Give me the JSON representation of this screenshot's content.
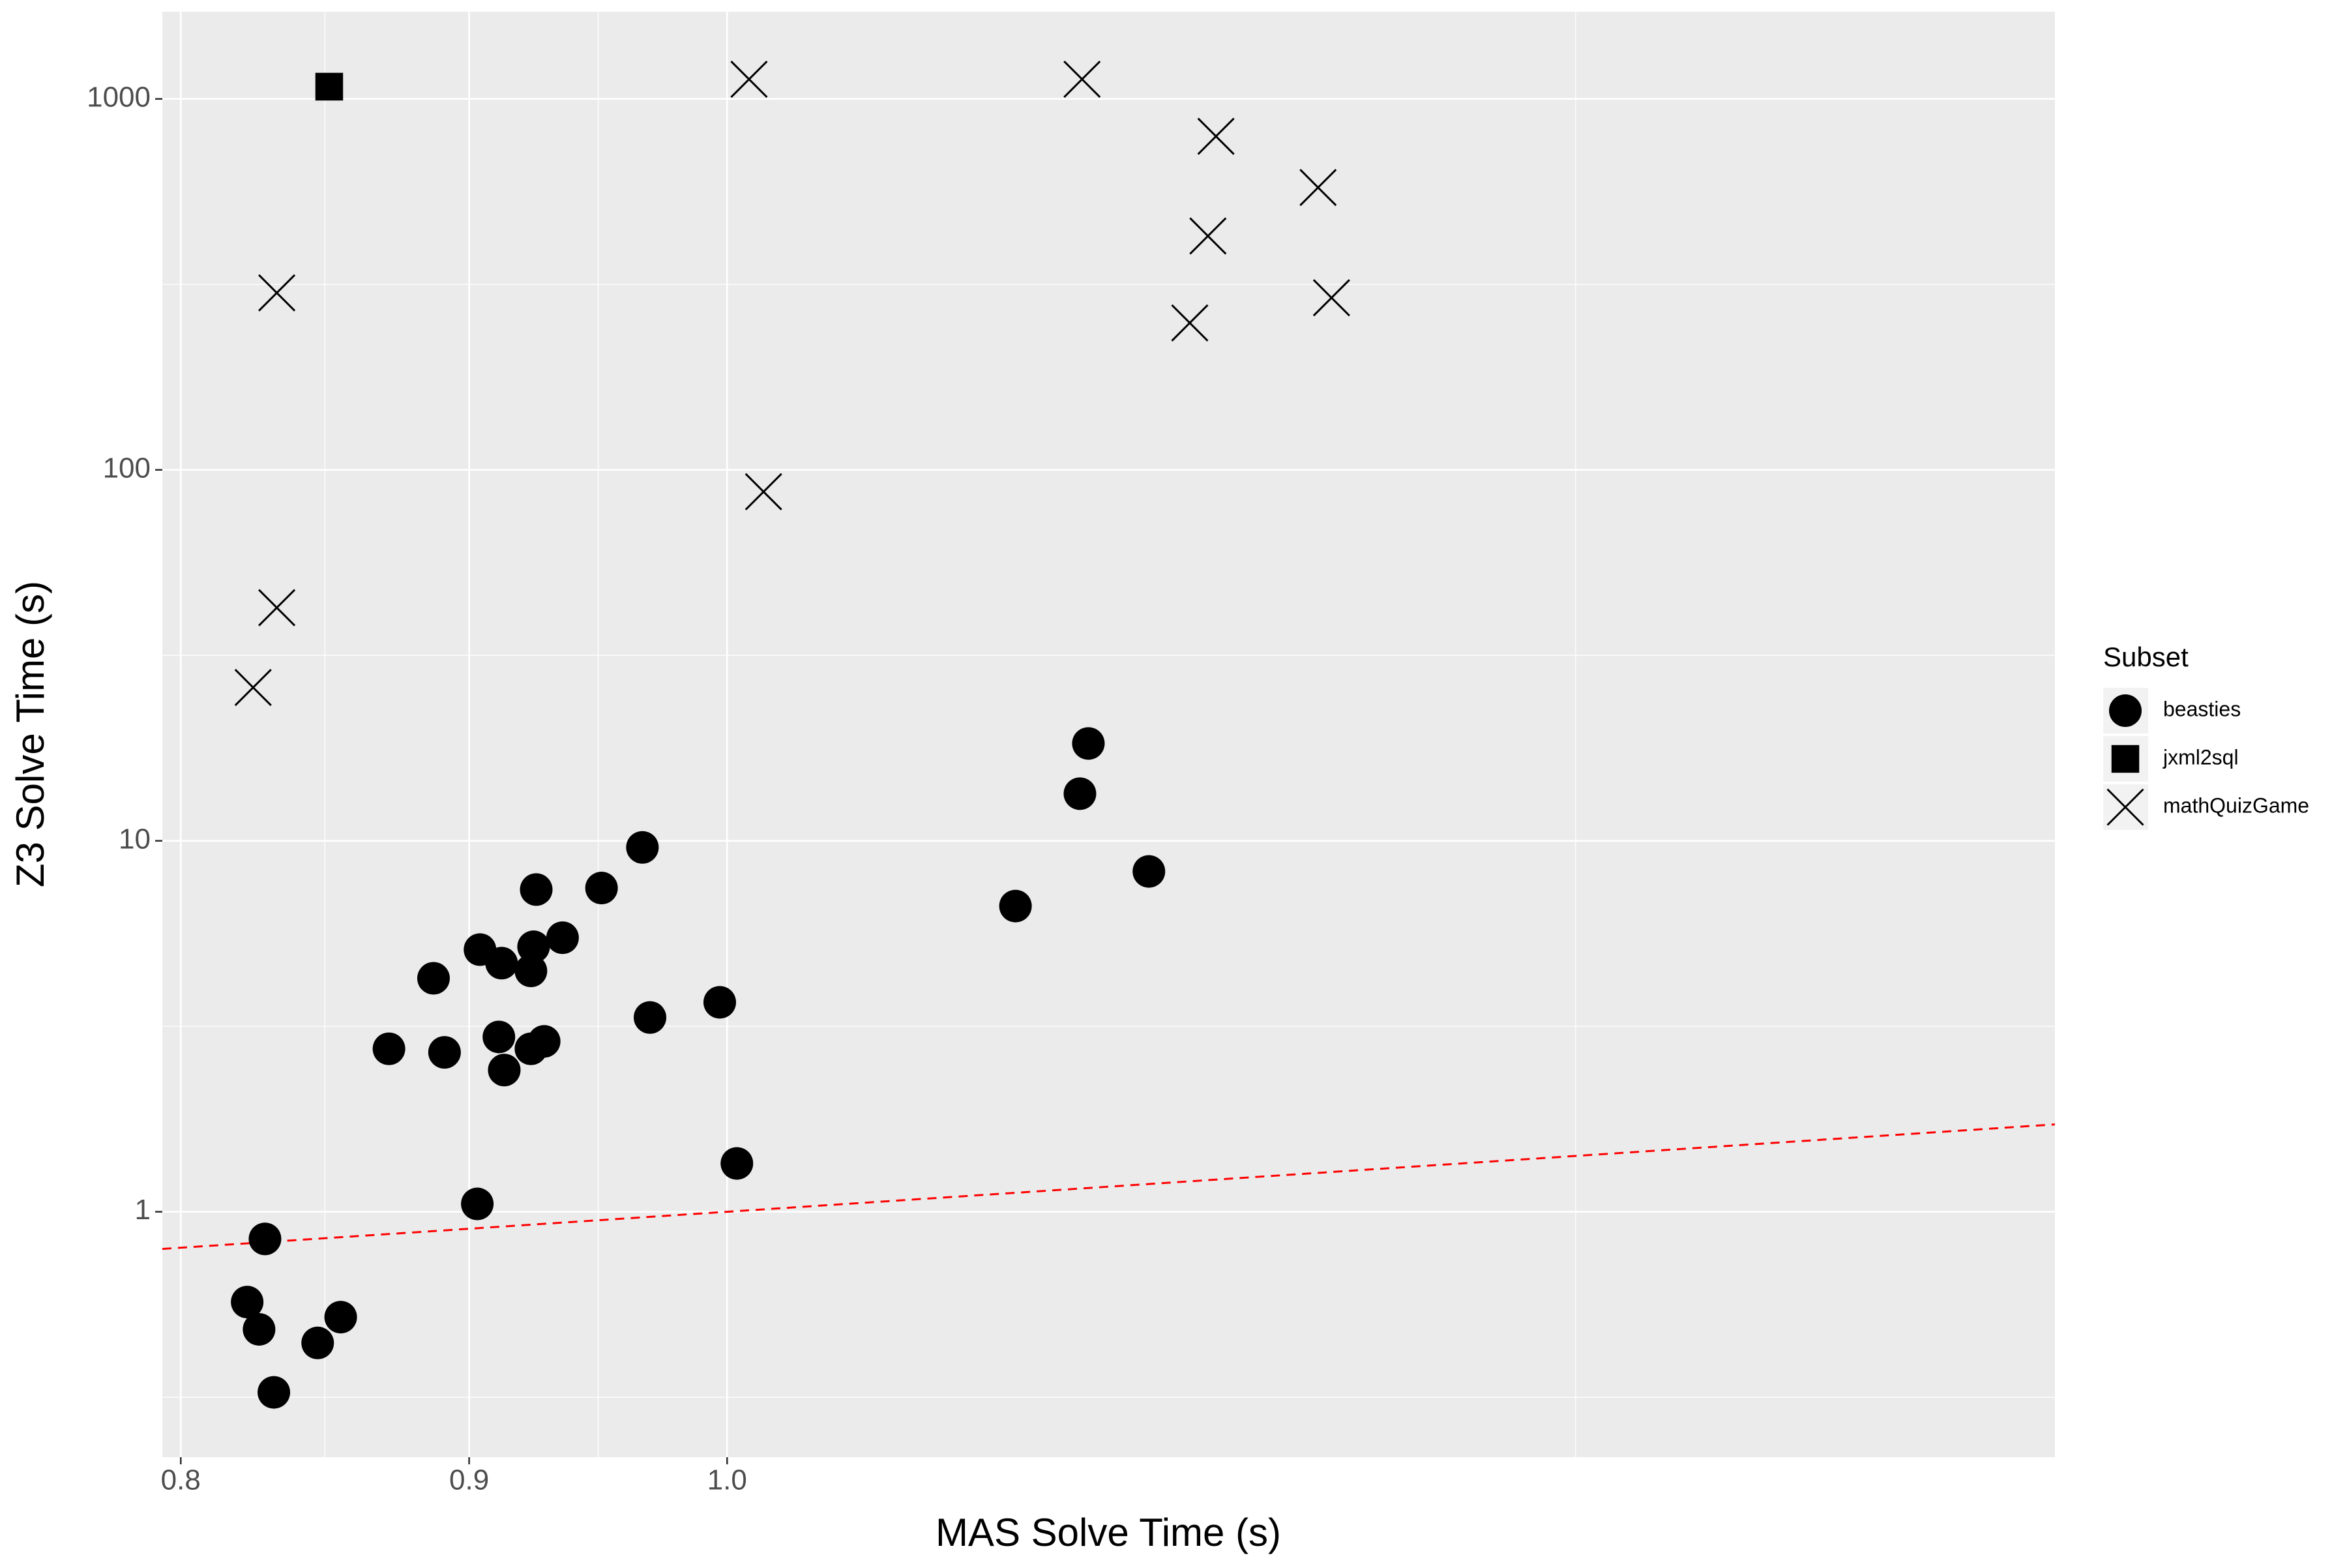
{
  "chart_data": {
    "type": "scatter",
    "x_label": "MAS Solve Time (s)",
    "y_label": "Z3 Solve Time (s)",
    "x_log": true,
    "y_log": true,
    "xlim": [
      0.794,
      1.72
    ],
    "ylim": [
      0.218,
      1718
    ],
    "xticks": [
      {
        "value": 0.8,
        "label": "0.8"
      },
      {
        "value": 0.9,
        "label": "0.9"
      },
      {
        "value": 1.0,
        "label": "1.0"
      }
    ],
    "yticks": [
      1,
      10,
      100,
      1000
    ],
    "x_minor_grid": [
      0.8485,
      0.9487,
      1.4142
    ],
    "y_minor_grid": [
      0.3162,
      3.162,
      31.62,
      316.2
    ],
    "grid": true,
    "legend_title": "Subset",
    "legend_position": "right",
    "reference_line": {
      "slope": 1,
      "intercept": 0,
      "color": "#ff0000",
      "dashed": true
    },
    "series": [
      {
        "name": "beasties",
        "shape": "circle",
        "color": "#000000",
        "x": [
          0.822,
          0.826,
          0.828,
          0.831,
          0.846,
          0.854,
          0.871,
          0.887,
          0.891,
          0.903,
          0.904,
          0.911,
          0.912,
          0.913,
          0.923,
          0.923,
          0.924,
          0.925,
          0.928,
          0.935,
          0.95,
          0.966,
          0.969,
          0.997,
          1.004,
          1.125,
          1.155,
          1.159,
          1.188
        ],
        "y": [
          0.571,
          0.482,
          0.845,
          0.326,
          0.443,
          0.52,
          2.75,
          4.26,
          2.69,
          1.05,
          5.09,
          2.96,
          4.68,
          2.41,
          2.75,
          4.46,
          5.18,
          7.39,
          2.88,
          5.48,
          7.46,
          9.6,
          3.34,
          3.67,
          1.35,
          6.67,
          13.4,
          18.3,
          8.27
        ]
      },
      {
        "name": "jxml2sql",
        "shape": "square",
        "color": "#000000",
        "x": [
          0.85
        ],
        "y": [
          1079
        ]
      },
      {
        "name": "mathQuizGame",
        "shape": "cross",
        "color": "#000000",
        "x": [
          0.824,
          0.832,
          0.832,
          1.009,
          1.015,
          1.156,
          1.208,
          1.217,
          1.221,
          1.273,
          1.28
        ],
        "y": [
          25.9,
          42.5,
          300,
          1130,
          87.3,
          1130,
          249,
          427,
          793,
          577,
          291
        ]
      }
    ]
  }
}
